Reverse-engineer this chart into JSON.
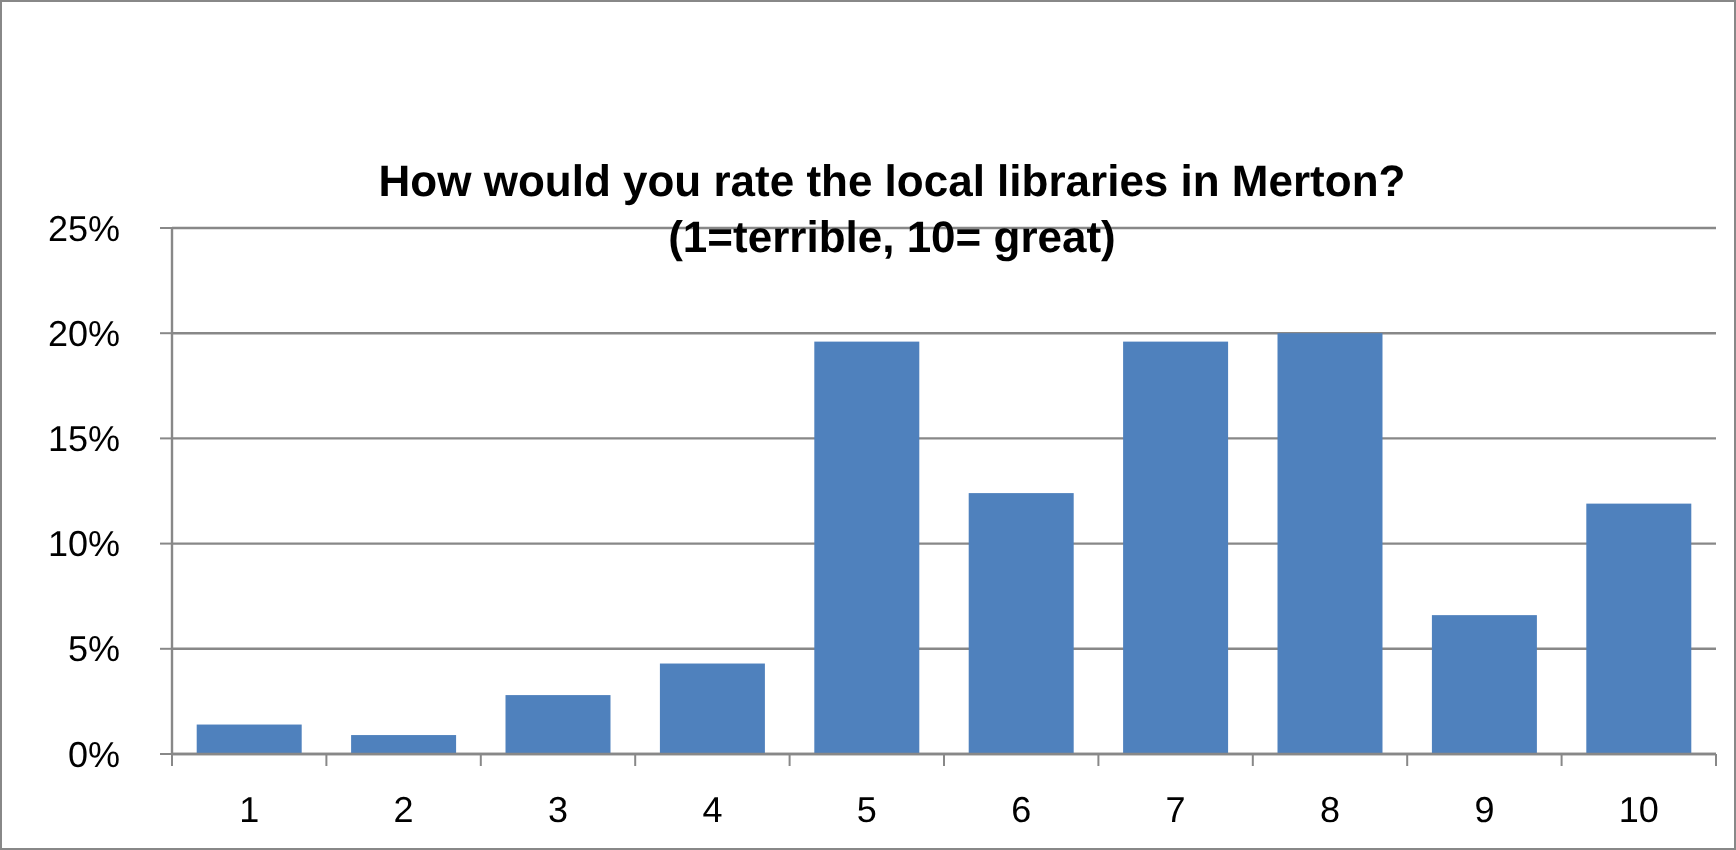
{
  "chart_data": {
    "type": "bar",
    "title": "How would you rate the local libraries in Merton?\n(1=terrible, 10= great)",
    "categories": [
      "1",
      "2",
      "3",
      "4",
      "5",
      "6",
      "7",
      "8",
      "9",
      "10"
    ],
    "values": [
      1.4,
      0.9,
      2.8,
      4.3,
      19.6,
      12.4,
      19.6,
      20.0,
      6.6,
      11.9
    ],
    "color": "#4f81bd",
    "ylim": [
      0,
      25
    ],
    "yticks": [
      {
        "value": 0,
        "label": "0%"
      },
      {
        "value": 5,
        "label": "5%"
      },
      {
        "value": 10,
        "label": "10%"
      },
      {
        "value": 15,
        "label": "15%"
      },
      {
        "value": 20,
        "label": "20%"
      },
      {
        "value": 25,
        "label": "25%"
      }
    ],
    "grid": "y"
  }
}
